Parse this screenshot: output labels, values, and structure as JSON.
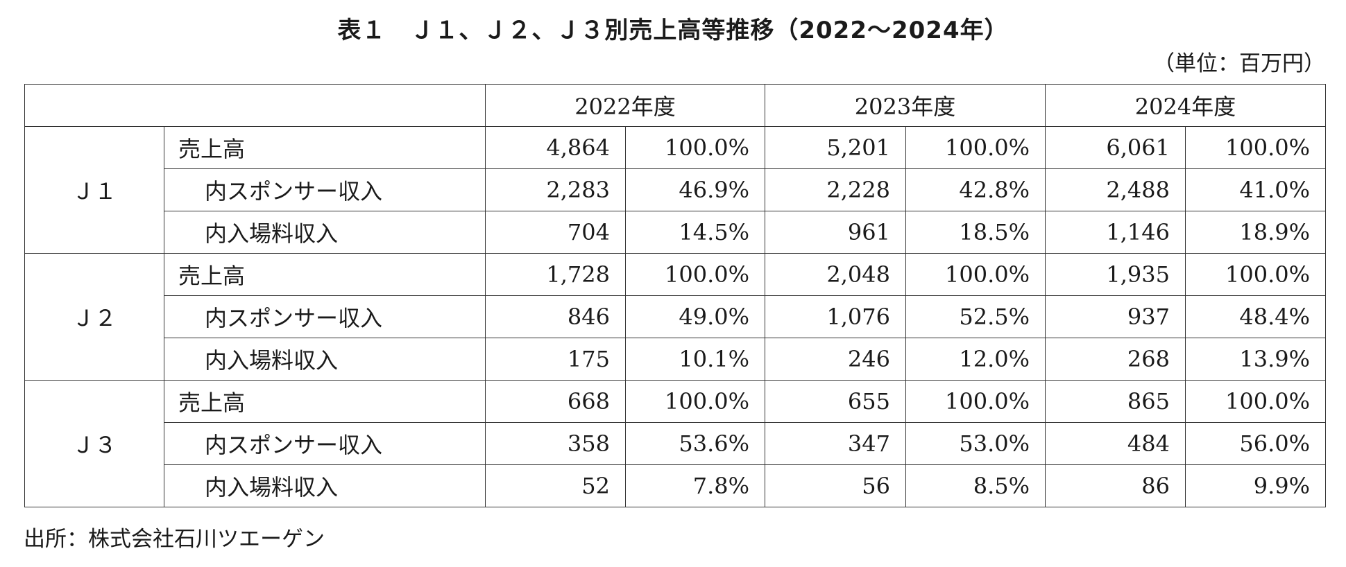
{
  "header": {
    "title": "表１　Ｊ１、Ｊ２、Ｊ３別売上高等推移（2022～2024年）",
    "unit": "（単位：百万円）"
  },
  "table": {
    "years": [
      "2022年度",
      "2023年度",
      "2024年度"
    ],
    "groups": [
      {
        "name": "Ｊ１",
        "rows": [
          {
            "label": "売上高",
            "cells": [
              "4,864",
              "100.0%",
              "5,201",
              "100.0%",
              "6,061",
              "100.0%"
            ]
          },
          {
            "label": "内スポンサー収入",
            "cells": [
              "2,283",
              "46.9%",
              "2,228",
              "42.8%",
              "2,488",
              "41.0%"
            ]
          },
          {
            "label": "内入場料収入",
            "cells": [
              "704",
              "14.5%",
              "961",
              "18.5%",
              "1,146",
              "18.9%"
            ]
          }
        ]
      },
      {
        "name": "Ｊ２",
        "rows": [
          {
            "label": "売上高",
            "cells": [
              "1,728",
              "100.0%",
              "2,048",
              "100.0%",
              "1,935",
              "100.0%"
            ]
          },
          {
            "label": "内スポンサー収入",
            "cells": [
              "846",
              "49.0%",
              "1,076",
              "52.5%",
              "937",
              "48.4%"
            ]
          },
          {
            "label": "内入場料収入",
            "cells": [
              "175",
              "10.1%",
              "246",
              "12.0%",
              "268",
              "13.9%"
            ]
          }
        ]
      },
      {
        "name": "Ｊ３",
        "rows": [
          {
            "label": "売上高",
            "cells": [
              "668",
              "100.0%",
              "655",
              "100.0%",
              "865",
              "100.0%"
            ]
          },
          {
            "label": "内スポンサー収入",
            "cells": [
              "358",
              "53.6%",
              "347",
              "53.0%",
              "484",
              "56.0%"
            ]
          },
          {
            "label": "内入場料収入",
            "cells": [
              "52",
              "7.8%",
              "56",
              "8.5%",
              "86",
              "9.9%"
            ]
          }
        ]
      }
    ]
  },
  "footer": {
    "source": "出所：株式会社石川ツエーゲン"
  }
}
